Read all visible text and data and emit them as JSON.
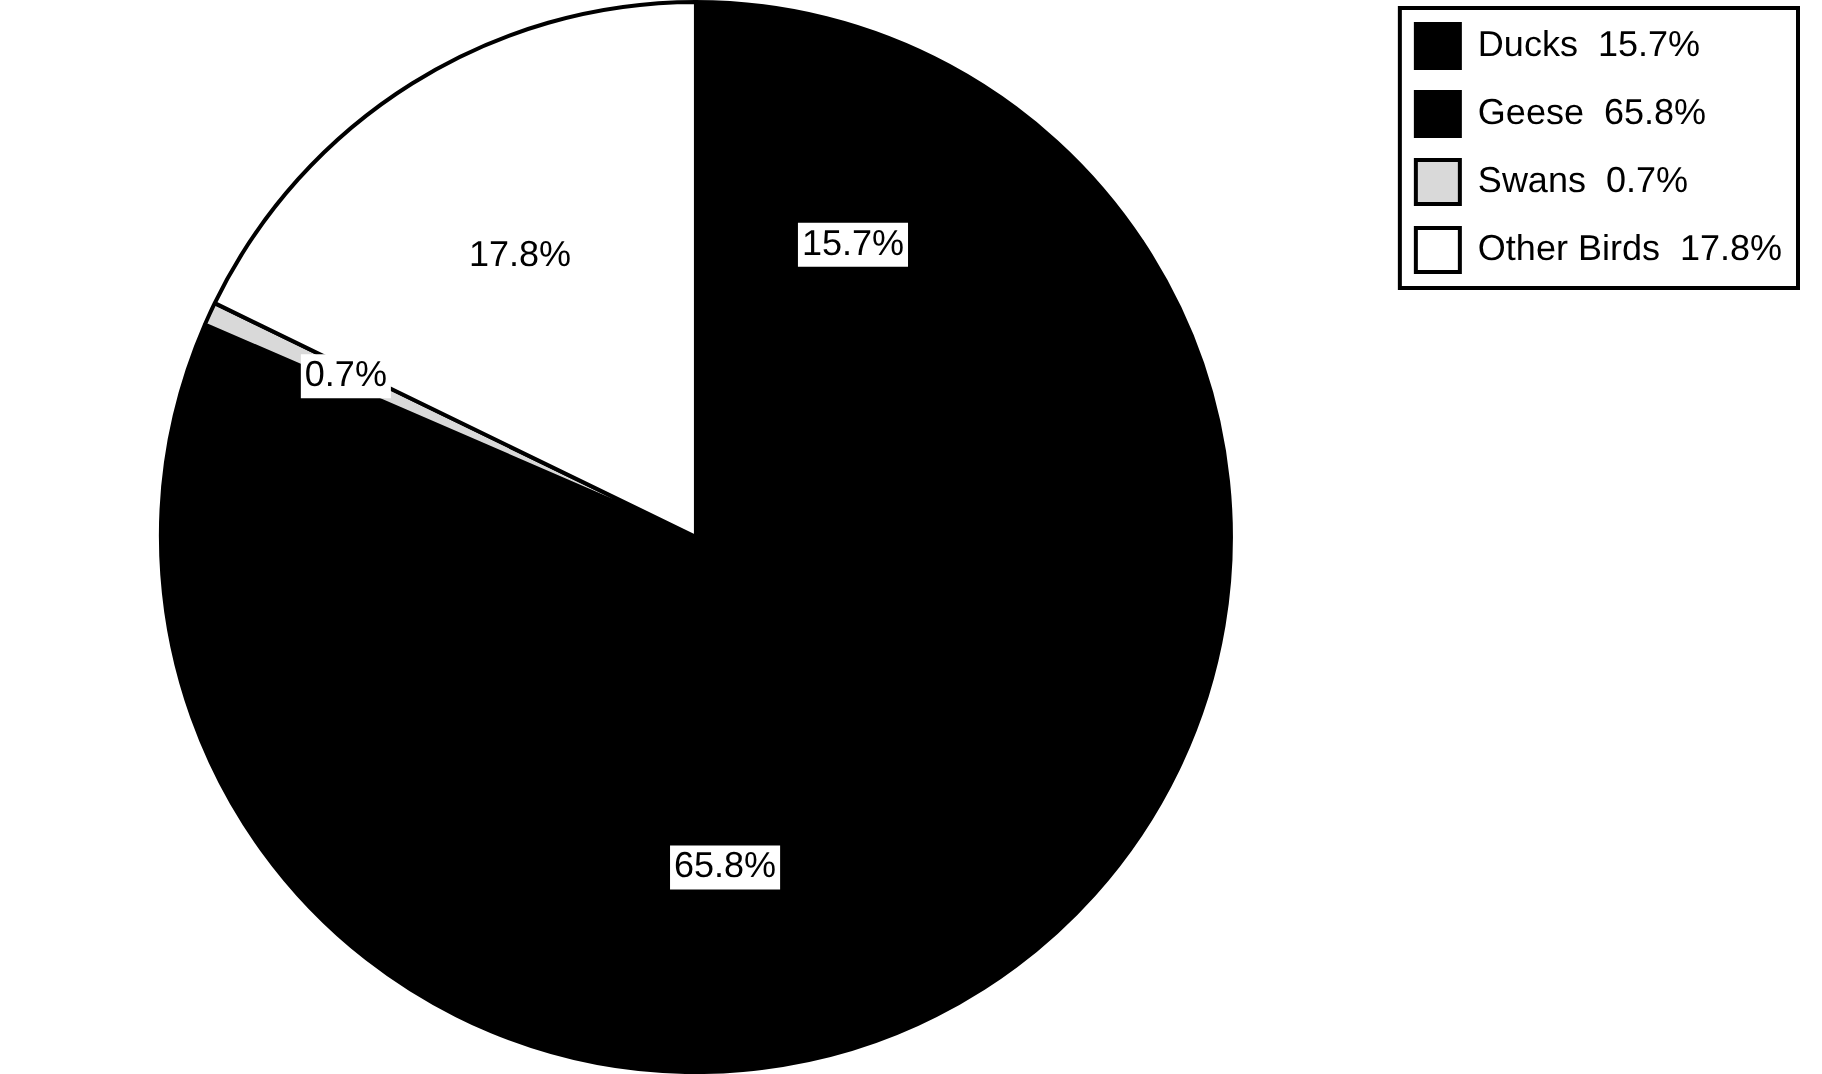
{
  "chart_data": {
    "type": "pie",
    "categories": [
      "Ducks",
      "Geese",
      "Swans",
      "Other Birds"
    ],
    "values": [
      15.7,
      65.8,
      0.7,
      17.8
    ],
    "value_labels": [
      "15.7%",
      "65.8%",
      "0.7%",
      "17.8%"
    ],
    "colors": [
      "#000000",
      "#000000",
      "#d9d9d9",
      "#ffffff"
    ],
    "legend": "top right"
  }
}
